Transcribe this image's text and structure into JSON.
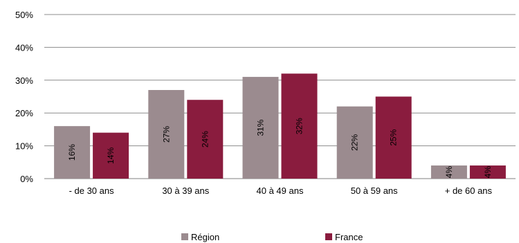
{
  "chart_data": {
    "type": "bar",
    "categories": [
      "- de 30 ans",
      "30 à 39 ans",
      "40 à 49 ans",
      "50 à 59 ans",
      "+ de 60 ans"
    ],
    "series": [
      {
        "name": "Région",
        "values": [
          16,
          27,
          31,
          22,
          4
        ],
        "labels": [
          "16%",
          "27%",
          "31%",
          "22%",
          "4%"
        ],
        "color": "#9b8b8f"
      },
      {
        "name": "France",
        "values": [
          14,
          24,
          32,
          25,
          4
        ],
        "labels": [
          "14%",
          "24%",
          "32%",
          "25%",
          "4%"
        ],
        "color": "#8a1c3e"
      }
    ],
    "ylim": [
      0,
      50
    ],
    "yticks": [
      "0%",
      "10%",
      "20%",
      "30%",
      "40%",
      "50%"
    ],
    "grid": true,
    "legend": "bottom",
    "title": "",
    "xlabel": "",
    "ylabel": ""
  }
}
